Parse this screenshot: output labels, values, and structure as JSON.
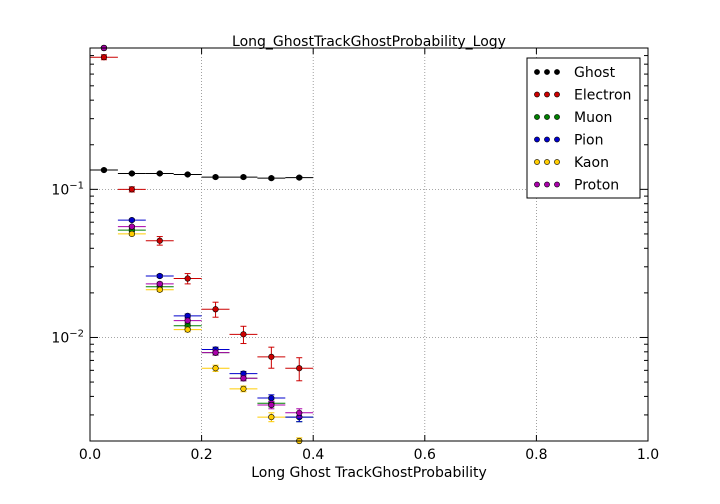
{
  "chart_data": {
    "type": "scatter",
    "title": "Long_GhostTrackGhostProbability_Logy",
    "xlabel": "Long Ghost TrackGhostProbability",
    "ylabel": "",
    "xlim": [
      0,
      1
    ],
    "ylim": [
      0.002,
      0.9
    ],
    "yscale": "log",
    "grid": true,
    "legend_position": "top-right",
    "x_ticks": [
      0,
      0.2,
      0.4,
      0.6,
      0.8,
      1.0
    ],
    "x_tick_labels": [
      "0.0",
      "0.2",
      "0.4",
      "0.6",
      "0.8",
      "1.0"
    ],
    "y_ticks": [
      0.01,
      0.1
    ],
    "y_tick_labels": [
      {
        "base": "10",
        "exp": "−2"
      },
      {
        "base": "10",
        "exp": "−1"
      }
    ],
    "bin_width": 0.05,
    "x": [
      0.025,
      0.075,
      0.125,
      0.175,
      0.225,
      0.275,
      0.325,
      0.375
    ],
    "series": [
      {
        "name": "Ghost",
        "color": "#000000",
        "values": [
          0.135,
          0.128,
          0.128,
          0.126,
          0.121,
          0.121,
          0.119,
          0.12
        ],
        "errors": [
          0.002,
          0.002,
          0.002,
          0.002,
          0.002,
          0.002,
          0.002,
          0.002
        ]
      },
      {
        "name": "Electron",
        "color": "#cc0000",
        "values": [
          0.78,
          0.1,
          0.045,
          0.025,
          0.0155,
          0.0105,
          0.0074,
          0.0062
        ],
        "errors": [
          0.03,
          0.004,
          0.003,
          0.002,
          0.0018,
          0.0014,
          0.0012,
          0.0011
        ]
      },
      {
        "name": "Muon",
        "color": "#008000",
        "values": [
          0.9,
          0.053,
          0.022,
          0.012,
          0.0079,
          0.0053,
          0.0036,
          0.0029
        ],
        "errors": [
          0.002,
          0.001,
          0.0006,
          0.0004,
          0.0003,
          0.0002,
          0.0002,
          0.0002
        ]
      },
      {
        "name": "Pion",
        "color": "#0000cc",
        "values": [
          0.9,
          0.062,
          0.026,
          0.014,
          0.0083,
          0.0057,
          0.0039,
          0.0029
        ],
        "errors": [
          0.002,
          0.001,
          0.0006,
          0.0004,
          0.0003,
          0.0002,
          0.0002,
          0.0002
        ]
      },
      {
        "name": "Kaon",
        "color": "#ffcc00",
        "values": [
          0.9,
          0.05,
          0.021,
          0.0113,
          0.0062,
          0.0045,
          0.0029,
          0.0019
        ],
        "errors": [
          0.002,
          0.001,
          0.0006,
          0.0004,
          0.0003,
          0.0002,
          0.0002,
          0.0002
        ]
      },
      {
        "name": "Proton",
        "color": "#aa00aa",
        "values": [
          0.9,
          0.056,
          0.023,
          0.013,
          0.0079,
          0.0053,
          0.0035,
          0.0031
        ],
        "errors": [
          0.002,
          0.001,
          0.0006,
          0.0004,
          0.0003,
          0.0002,
          0.0002,
          0.0002
        ]
      }
    ]
  }
}
